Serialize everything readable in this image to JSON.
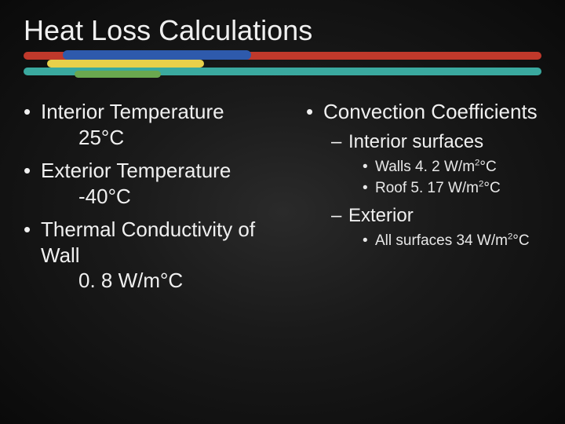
{
  "title": "Heat Loss Calculations",
  "colors": {
    "text": "#f0f0f0",
    "background_center": "#2a2a2a",
    "background_edge": "#0a0a0a",
    "bar_red": "#c0392b",
    "bar_blue": "#2e5aac",
    "bar_yellow": "#e8d04a",
    "bar_teal": "#3aa99f",
    "bar_green": "#6aa84f"
  },
  "typography": {
    "title_fontsize": 36,
    "lvl1_fontsize": 26,
    "lvl2_fontsize": 24,
    "lvl3_fontsize": 19,
    "font_family": "Century Gothic"
  },
  "left": {
    "items": [
      {
        "label": "Interior Temperature",
        "value": "25°C"
      },
      {
        "label": "Exterior Temperature",
        "value": "-40°C"
      },
      {
        "label": "Thermal Conductivity of Wall",
        "value": "0. 8 W/m°C"
      }
    ]
  },
  "right": {
    "heading": "Convection Coefficients",
    "groups": [
      {
        "label": "Interior surfaces",
        "items": [
          {
            "text": "Walls 4. 2 W/m²°C",
            "plain": "Walls 4. 2 W/m",
            "sup": "2",
            "tail": "°C"
          },
          {
            "text": "Roof 5. 17 W/m²°C",
            "plain": "Roof 5. 17 W/m",
            "sup": "2",
            "tail": "°C"
          }
        ]
      },
      {
        "label": "Exterior",
        "items": [
          {
            "text": "All surfaces 34 W/m²°C",
            "plain": "All surfaces 34 W/m",
            "sup": "2",
            "tail": "°C"
          }
        ]
      }
    ]
  }
}
